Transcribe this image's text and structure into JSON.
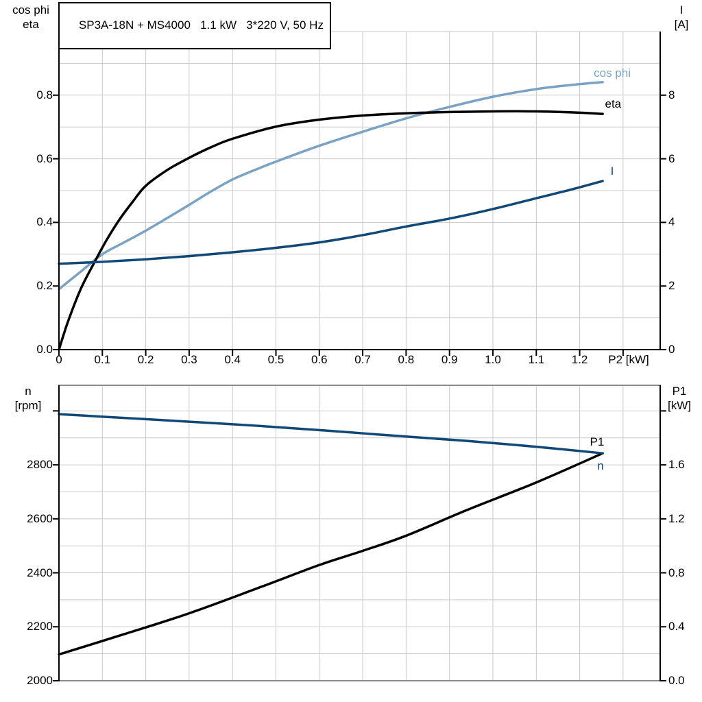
{
  "colors": {
    "black": "#000000",
    "light_blue": "#7aa2c4",
    "dark_blue": "#104878",
    "grid": "#c9c9c9",
    "frame": "#8a8a8a"
  },
  "chart_data": [
    {
      "type": "line",
      "title": "SP3A-18N + MS4000   1.1 kW   3*220 V, 50 Hz",
      "x_axis": {
        "label": "P2 [kW]",
        "min": 0,
        "max": 1.3855,
        "grid_step": 0.1,
        "ticks": [
          [
            0,
            "0"
          ],
          [
            0.1,
            "0.1"
          ],
          [
            0.2,
            "0.2"
          ],
          [
            0.3,
            "0.3"
          ],
          [
            0.4,
            "0.4"
          ],
          [
            0.5,
            "0.5"
          ],
          [
            0.6,
            "0.6"
          ],
          [
            0.7,
            "0.7"
          ],
          [
            0.8,
            "0.8"
          ],
          [
            0.9,
            "0.9"
          ],
          [
            1.0,
            "1.0"
          ],
          [
            1.1,
            "1.1"
          ],
          [
            1.2,
            "1.2"
          ]
        ],
        "extra_ticks": [
          1.3
        ]
      },
      "left_axis": {
        "title": "cos phi\neta",
        "min": 0,
        "max": 1.0,
        "grid_step": 0.1,
        "ticks": [
          [
            0,
            "0.0"
          ],
          [
            0.2,
            "0.2"
          ],
          [
            0.4,
            "0.4"
          ],
          [
            0.6,
            "0.6"
          ],
          [
            0.8,
            "0.8"
          ]
        ],
        "extra_ticks": []
      },
      "right_axis": {
        "title": "I\n[A]",
        "min": 0,
        "max": 10,
        "ticks": [
          [
            0,
            "0"
          ],
          [
            2,
            "2"
          ],
          [
            4,
            "4"
          ],
          [
            6,
            "6"
          ],
          [
            8,
            "8"
          ]
        ],
        "extra_ticks": []
      },
      "grid": true,
      "legend_position": "inline-right",
      "series": [
        {
          "name": "cos phi",
          "label": "cos phi",
          "axis": "left",
          "color": "light_blue",
          "label_x": 1.275,
          "label_y": 0.868,
          "points": [
            [
              0,
              0.19
            ],
            [
              0.05,
              0.245
            ],
            [
              0.1,
              0.3
            ],
            [
              0.15,
              0.337
            ],
            [
              0.2,
              0.374
            ],
            [
              0.25,
              0.414
            ],
            [
              0.3,
              0.455
            ],
            [
              0.35,
              0.497
            ],
            [
              0.4,
              0.535
            ],
            [
              0.45,
              0.564
            ],
            [
              0.5,
              0.591
            ],
            [
              0.6,
              0.641
            ],
            [
              0.7,
              0.685
            ],
            [
              0.8,
              0.727
            ],
            [
              0.9,
              0.763
            ],
            [
              1.0,
              0.795
            ],
            [
              1.1,
              0.819
            ],
            [
              1.18,
              0.832
            ],
            [
              1.253,
              0.841
            ]
          ]
        },
        {
          "name": "eta",
          "label": "eta",
          "axis": "left",
          "color": "black",
          "label_x": 1.277,
          "label_y": 0.772,
          "points": [
            [
              0,
              0
            ],
            [
              0.02,
              0.085
            ],
            [
              0.05,
              0.19
            ],
            [
              0.08,
              0.27
            ],
            [
              0.11,
              0.345
            ],
            [
              0.14,
              0.41
            ],
            [
              0.17,
              0.465
            ],
            [
              0.2,
              0.515
            ],
            [
              0.25,
              0.565
            ],
            [
              0.3,
              0.603
            ],
            [
              0.35,
              0.636
            ],
            [
              0.4,
              0.663
            ],
            [
              0.5,
              0.701
            ],
            [
              0.6,
              0.723
            ],
            [
              0.7,
              0.736
            ],
            [
              0.8,
              0.743
            ],
            [
              0.9,
              0.747
            ],
            [
              1.0,
              0.749
            ],
            [
              1.1,
              0.749
            ],
            [
              1.2,
              0.745
            ],
            [
              1.253,
              0.741
            ]
          ]
        },
        {
          "name": "I",
          "label": "I",
          "axis": "right",
          "color": "dark_blue",
          "label_x": 1.275,
          "label_y": 5.6,
          "points": [
            [
              0,
              2.7
            ],
            [
              0.1,
              2.76
            ],
            [
              0.2,
              2.84
            ],
            [
              0.3,
              2.94
            ],
            [
              0.4,
              3.06
            ],
            [
              0.5,
              3.2
            ],
            [
              0.6,
              3.37
            ],
            [
              0.7,
              3.6
            ],
            [
              0.8,
              3.87
            ],
            [
              0.9,
              4.12
            ],
            [
              1.0,
              4.42
            ],
            [
              1.1,
              4.76
            ],
            [
              1.18,
              5.03
            ],
            [
              1.253,
              5.3
            ]
          ]
        }
      ]
    },
    {
      "type": "line",
      "title": "",
      "x_axis": {
        "label": "",
        "min": 0,
        "max": 1.3855,
        "grid_step": 0.1,
        "ticks": [],
        "extra_ticks": []
      },
      "left_axis": {
        "title": "n\n[rpm]",
        "min": 2000,
        "max": 3095,
        "grid_step": 100,
        "ticks": [
          [
            2000,
            "2000"
          ],
          [
            2200,
            "2200"
          ],
          [
            2400,
            "2400"
          ],
          [
            2600,
            "2600"
          ],
          [
            2800,
            "2800"
          ]
        ],
        "extra_ticks": [
          3000
        ]
      },
      "right_axis": {
        "title": "P1\n[kW]",
        "min": 0,
        "max": 2.19,
        "ticks": [
          [
            0,
            "0.0"
          ],
          [
            0.4,
            "0.4"
          ],
          [
            0.8,
            "0.8"
          ],
          [
            1.2,
            "1.2"
          ],
          [
            1.6,
            "1.6"
          ]
        ],
        "extra_ticks": [
          2.0
        ]
      },
      "grid": true,
      "legend_position": "inline-right",
      "series": [
        {
          "name": "P1",
          "label": "P1",
          "axis": "right",
          "color": "black",
          "label_x": 1.24,
          "label_y": 1.768,
          "points": [
            [
              0,
              0.195
            ],
            [
              0.15,
              0.345
            ],
            [
              0.3,
              0.5
            ],
            [
              0.466,
              0.696
            ],
            [
              0.6,
              0.858
            ],
            [
              0.7,
              0.963
            ],
            [
              0.8,
              1.075
            ],
            [
              0.94,
              1.265
            ],
            [
              1.1,
              1.47
            ],
            [
              1.253,
              1.686
            ]
          ]
        },
        {
          "name": "n",
          "label": "n",
          "axis": "left",
          "color": "dark_blue",
          "label_x": 1.248,
          "label_y": 2795,
          "points": [
            [
              0,
              2988
            ],
            [
              0.15,
              2974
            ],
            [
              0.3,
              2960
            ],
            [
              0.466,
              2944
            ],
            [
              0.6,
              2929
            ],
            [
              0.7,
              2917
            ],
            [
              0.8,
              2905
            ],
            [
              0.94,
              2889
            ],
            [
              1.1,
              2867
            ],
            [
              1.253,
              2843
            ]
          ]
        }
      ]
    }
  ]
}
